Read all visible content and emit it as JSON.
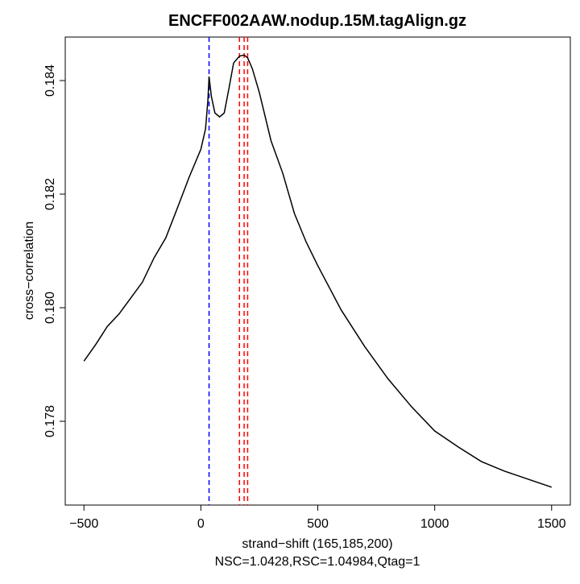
{
  "chart_data": {
    "type": "line",
    "title": "ENCFF002AAW.nodup.15M.tagAlign.gz",
    "xlabel": "strand−shift (165,185,200)",
    "subtitle": "NSC=1.0428,RSC=1.04984,Qtag=1",
    "ylabel": "cross−correlation",
    "x": [
      -500,
      -450,
      -400,
      -350,
      -300,
      -250,
      -200,
      -150,
      -100,
      -50,
      0,
      20,
      30,
      35,
      45,
      60,
      80,
      100,
      120,
      140,
      165,
      185,
      200,
      220,
      250,
      300,
      350,
      400,
      450,
      500,
      600,
      700,
      800,
      900,
      1000,
      1100,
      1200,
      1300,
      1400,
      1500
    ],
    "series": [
      {
        "color": "#000000",
        "values": [
          0.17906,
          0.17935,
          0.17967,
          0.17989,
          0.18017,
          0.18045,
          0.18088,
          0.18123,
          0.18176,
          0.1823,
          0.18279,
          0.18315,
          0.18365,
          0.18407,
          0.18372,
          0.18343,
          0.18336,
          0.18343,
          0.18386,
          0.18431,
          0.18443,
          0.18445,
          0.1844,
          0.18421,
          0.18379,
          0.18294,
          0.18237,
          0.18166,
          0.18116,
          0.18074,
          0.17996,
          0.17932,
          0.17875,
          0.17826,
          0.17783,
          0.17755,
          0.17729,
          0.17712,
          0.17698,
          0.17684
        ]
      }
    ],
    "vlines": [
      {
        "value": 35,
        "color": "#0000ff"
      },
      {
        "value": 165,
        "color": "#ff0000"
      },
      {
        "value": 185,
        "color": "#ff0000"
      },
      {
        "value": 200,
        "color": "#ff0000"
      }
    ],
    "xlim": [
      -580,
      1580
    ],
    "ylim": [
      0.176525,
      0.184766
    ],
    "xticks": [
      {
        "value": -500,
        "label": "−500"
      },
      0,
      500,
      1000,
      1500
    ],
    "yticks": [
      0.178,
      {
        "value": 0.18,
        "label": "0.180"
      },
      0.182,
      0.184
    ]
  }
}
